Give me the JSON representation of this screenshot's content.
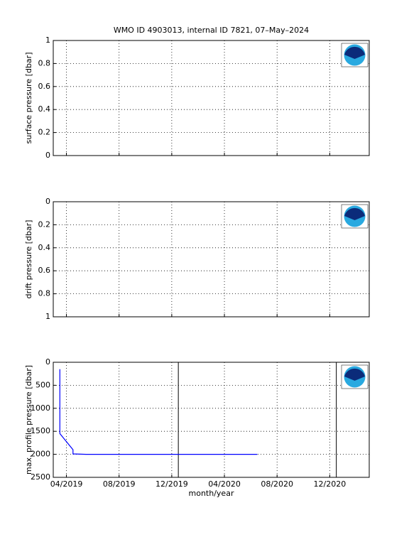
{
  "chart_data": [
    {
      "type": "line",
      "title": "WMO ID 4903013, internal ID 7821, 07–May–2024",
      "ylabel": "surface pressure [dbar]",
      "xlim": [
        "2019-03",
        "2021-03"
      ],
      "xticks": [
        "2019-04",
        "2019-08",
        "2019-12",
        "2020-04",
        "2020-08",
        "2020-12"
      ],
      "ylim": [
        0,
        1
      ],
      "yticks": [
        0,
        0.2,
        0.4,
        0.6,
        0.8,
        1
      ],
      "reversed": false,
      "grid": true,
      "series": []
    },
    {
      "type": "line",
      "ylabel": "drift pressure [dbar]",
      "xlim": [
        "2019-03",
        "2021-03"
      ],
      "xticks": [
        "2019-04",
        "2019-08",
        "2019-12",
        "2020-04",
        "2020-08",
        "2020-12"
      ],
      "ylim": [
        0,
        1
      ],
      "yticks": [
        0,
        0.2,
        0.4,
        0.6,
        0.8,
        1
      ],
      "reversed": true,
      "grid": true,
      "series": []
    },
    {
      "type": "line",
      "ylabel": "max. profile pressure [dbar]",
      "xlabel": "month/year",
      "xlim": [
        "2019-03",
        "2021-03"
      ],
      "xticks": [
        {
          "value": "2019-04",
          "label": "04/2019"
        },
        {
          "value": "2019-08",
          "label": "08/2019"
        },
        {
          "value": "2019-12",
          "label": "12/2019"
        },
        {
          "value": "2020-04",
          "label": "04/2020"
        },
        {
          "value": "2020-08",
          "label": "08/2020"
        },
        {
          "value": "2020-12",
          "label": "12/2020"
        }
      ],
      "ylim": [
        0,
        2500
      ],
      "yticks": [
        0,
        500,
        1000,
        1500,
        2000,
        2500
      ],
      "reversed": true,
      "grid": true,
      "vlines": [
        "2019-12",
        "2020-12"
      ],
      "series": [
        {
          "color": "#0000ff",
          "x": [
            "2019-03",
            "2019-03",
            "2019-03",
            "2019-03",
            "2019-04",
            "2019-04",
            "2019-05",
            "2019-12",
            "2020-06"
          ],
          "values": [
            150,
            1500,
            1100,
            1550,
            1900,
            1990,
            2000,
            2000,
            2000
          ]
        }
      ]
    }
  ]
}
